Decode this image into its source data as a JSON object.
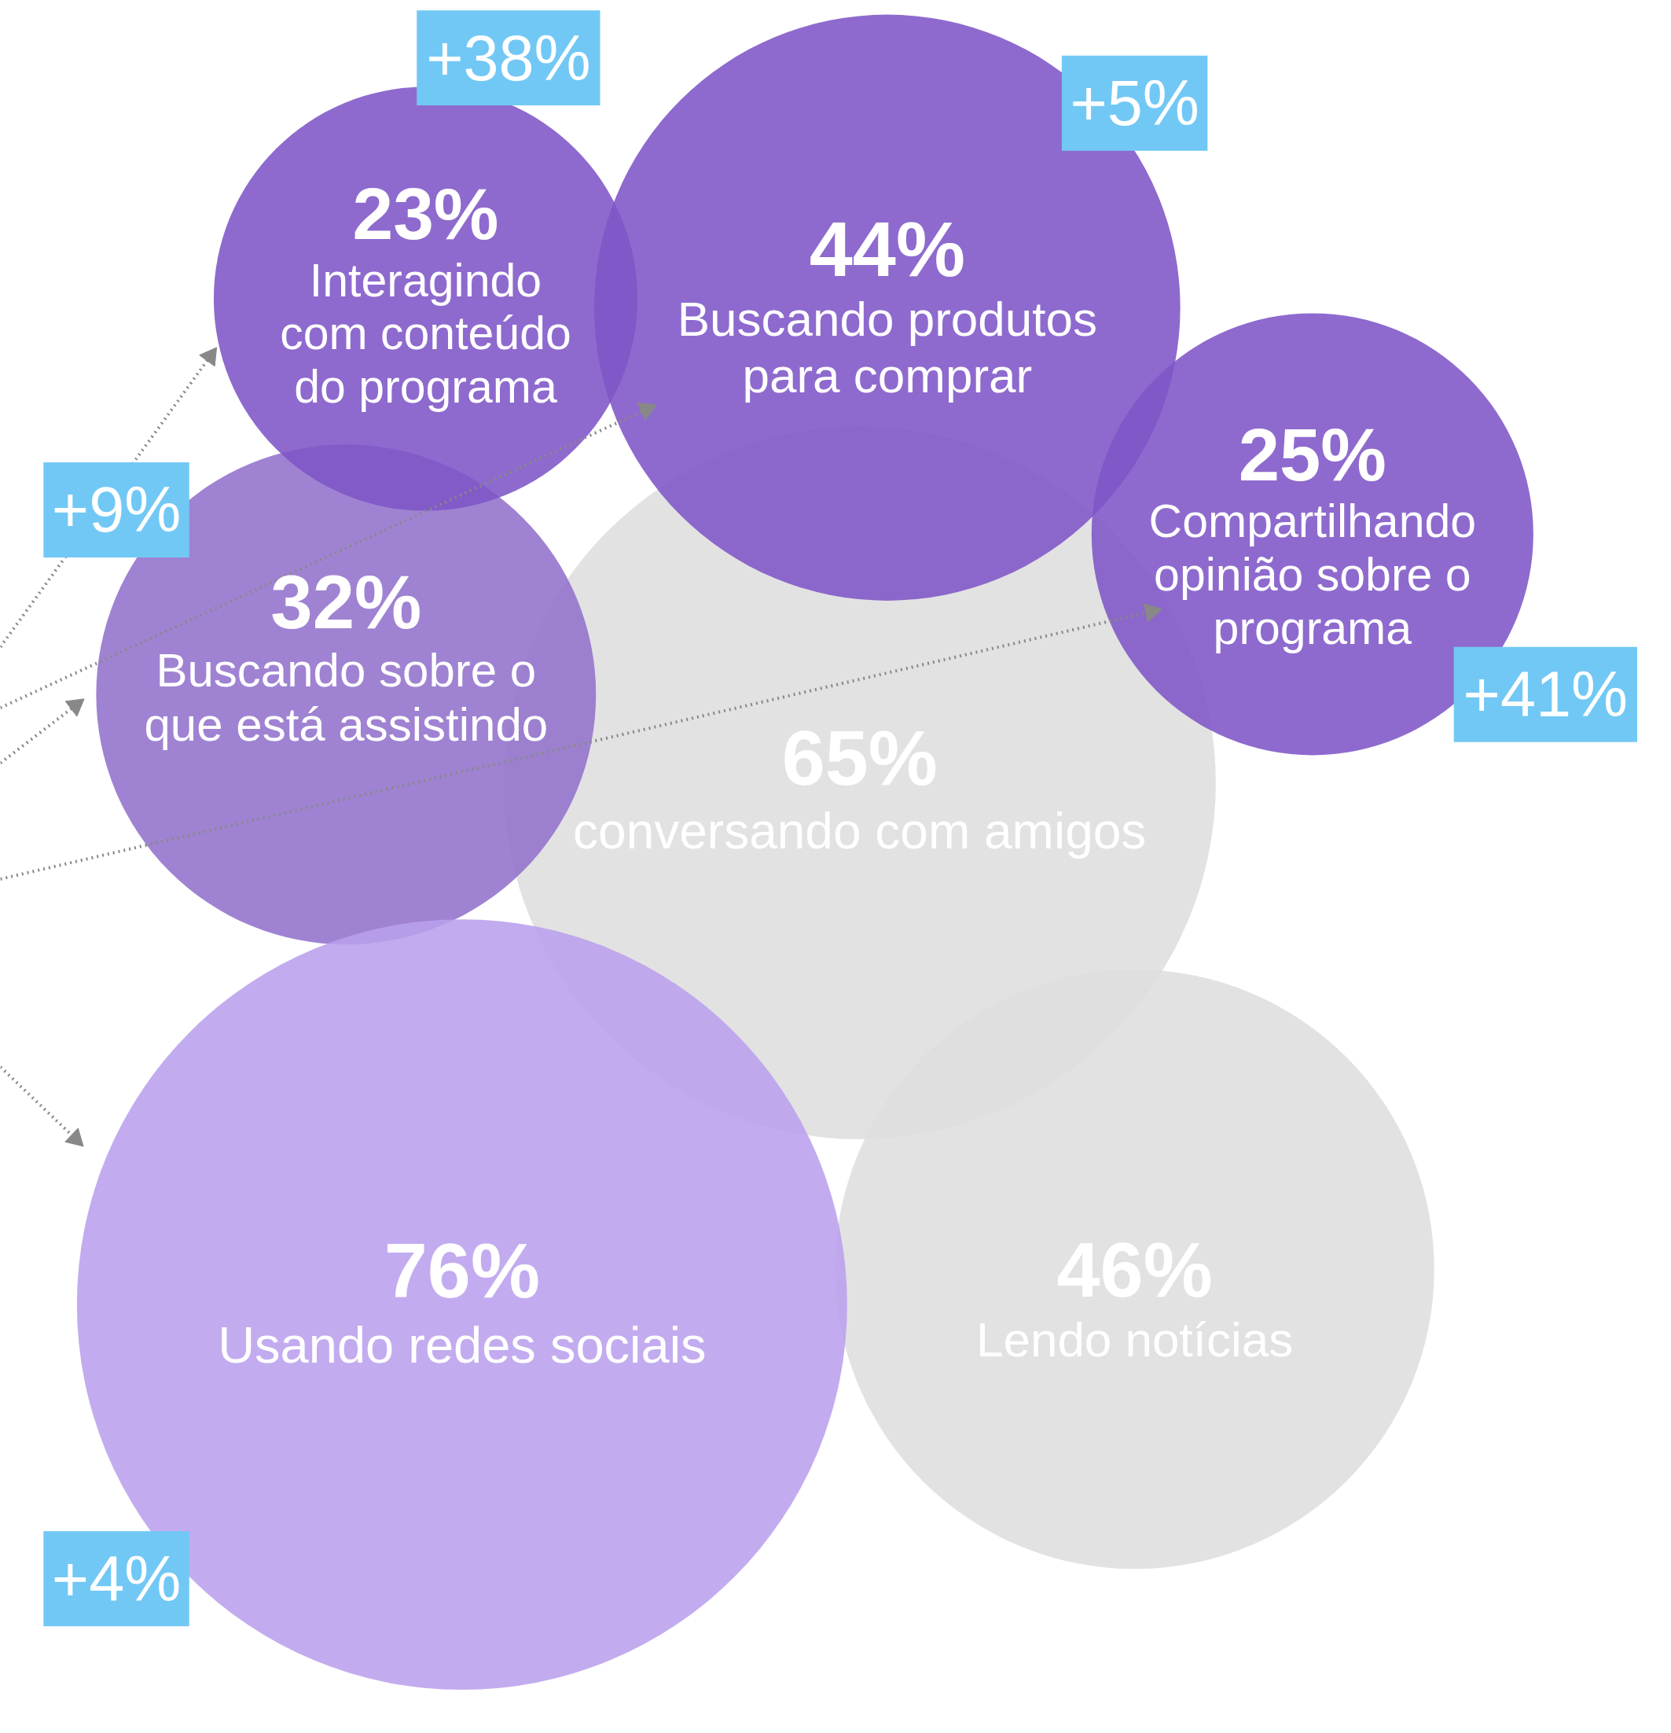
{
  "chart_data": {
    "type": "other",
    "categories": [
      "Interagindo\ncom conteúdo\ndo programa",
      "Buscando produtos\npara comprar",
      "Compartilhando\nopinião sobre o\nprograma",
      "Buscando sobre o\nque está assistindo",
      "conversando com amigos",
      "Usando redes sociais",
      "Lendo notícias"
    ],
    "values": [
      23,
      44,
      25,
      32,
      65,
      76,
      46
    ],
    "value_labels": [
      "23%",
      "44%",
      "25%",
      "32%",
      "65%",
      "76%",
      "46%"
    ],
    "colors": [
      "#7e55c7",
      "#7e55c7",
      "#7e55c7",
      "#9272cc",
      "#dedede",
      "#b9a0ed",
      "#dedede"
    ],
    "annotations": [
      "+38%",
      "+5%",
      "+41%",
      "+9%",
      "+4%"
    ]
  }
}
